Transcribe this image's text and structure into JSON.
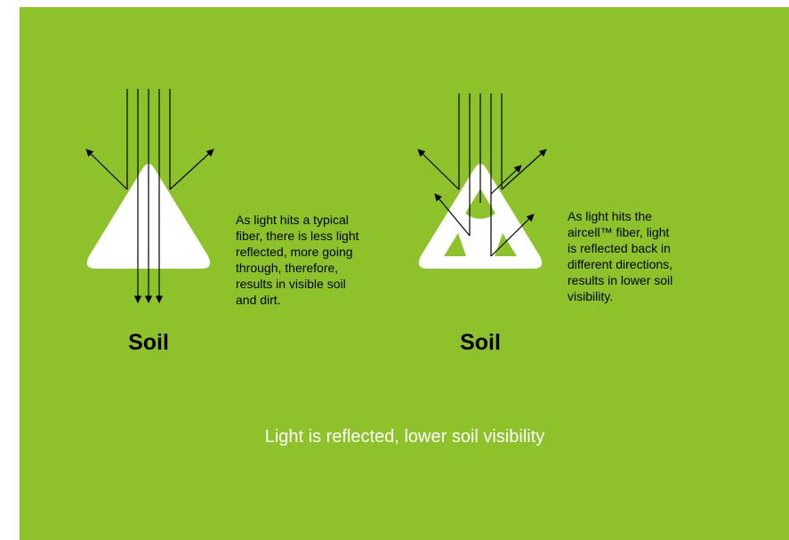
{
  "diagrams": [
    {
      "label": "Soil",
      "description_lines": [
        "As light hits a typical",
        "fiber, there is less light",
        "reflected, more going",
        "through, therefore,",
        "results in visible soil",
        "and dirt."
      ]
    },
    {
      "label": "Soil",
      "description_lines": [
        "As light hits the",
        "aircell™ fiber, light",
        "is reflected back in",
        "different directions,",
        "results in lower soil",
        "visibility."
      ]
    }
  ],
  "caption": "Light is reflected, lower soil visibility"
}
